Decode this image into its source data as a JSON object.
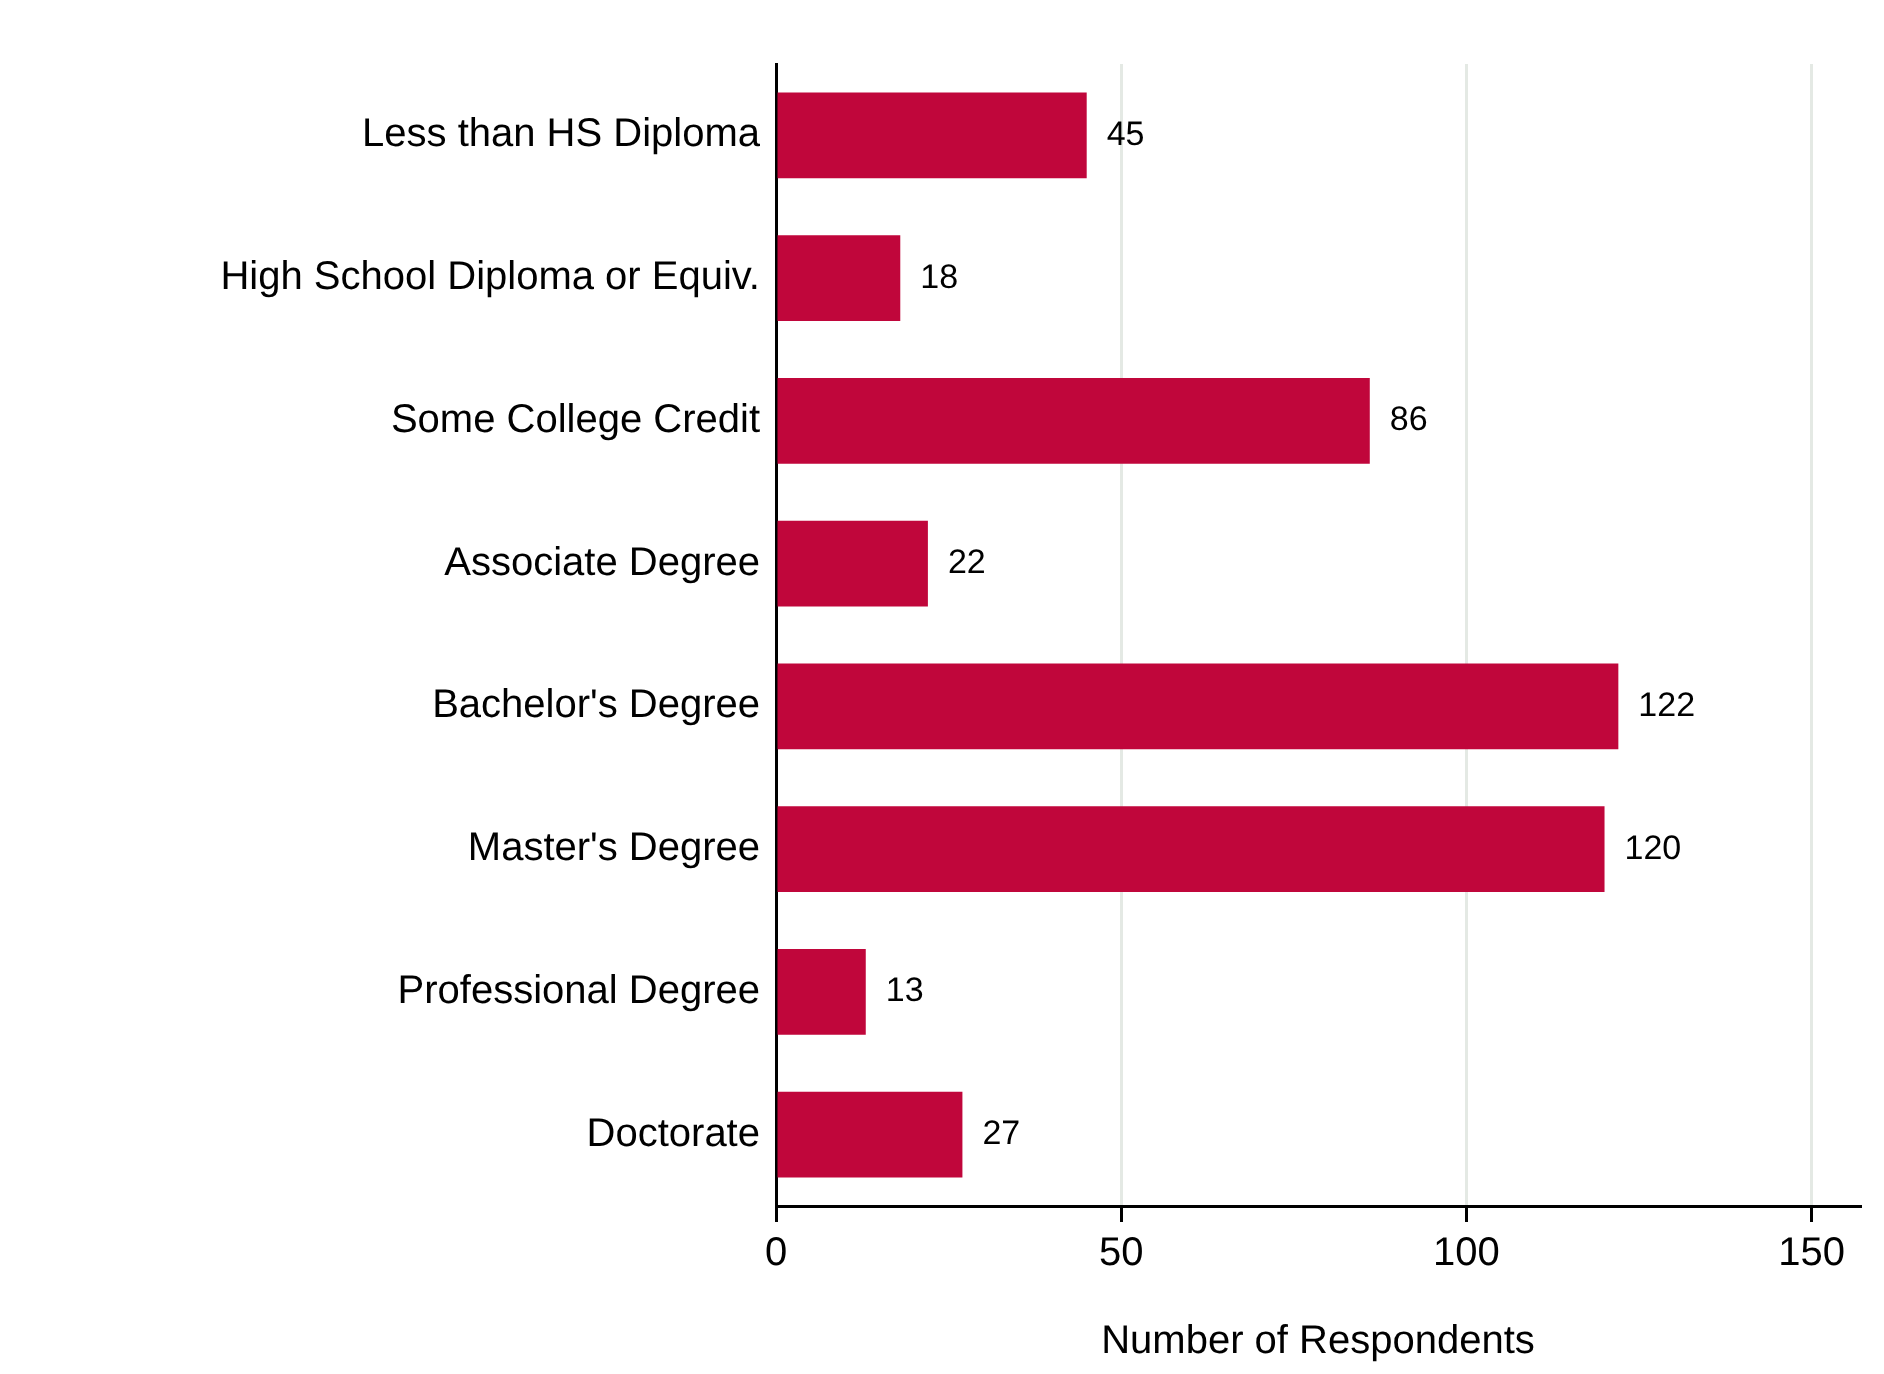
{
  "chart_data": {
    "type": "bar",
    "orientation": "horizontal",
    "xlabel": "Number of Respondents",
    "categories": [
      "Less than HS Diploma",
      "High School Diploma or Equiv.",
      "Some College Credit",
      "Associate Degree",
      "Bachelor's Degree",
      "Master's Degree",
      "Professional Degree",
      "Doctorate"
    ],
    "values": [
      45,
      18,
      86,
      22,
      122,
      120,
      13,
      27
    ],
    "color": "#c0063b",
    "xlim": [
      0,
      157
    ],
    "xticks": [
      0,
      50,
      100,
      150
    ],
    "grid": "x",
    "legend": false,
    "data_labels": true
  }
}
